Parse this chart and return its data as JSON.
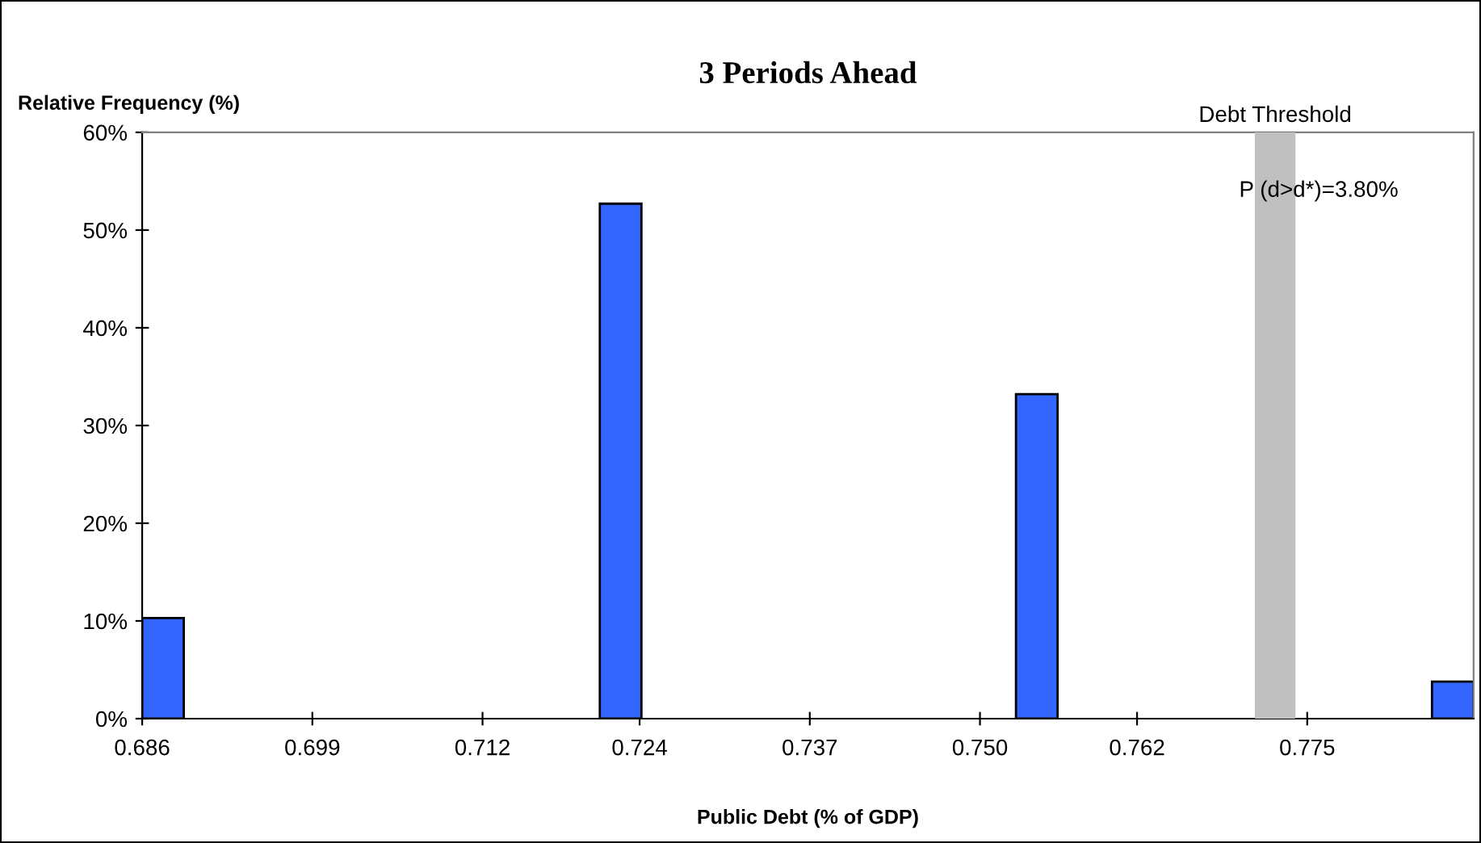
{
  "chart_data": {
    "type": "bar",
    "title": "3 Periods Ahead",
    "xlabel": "Public Debt (% of GDP)",
    "ylabel": "Relative Frequency (%)",
    "x": [
      0.68759,
      0.72255,
      0.75434,
      0.78612
    ],
    "values": [
      10.3,
      52.7,
      33.2,
      3.8
    ],
    "color": "#3366ff",
    "xlim": [
      0.686,
      0.78771
    ],
    "xticks": [
      0.686,
      0.699,
      0.712,
      0.724,
      0.737,
      {
        "value": 0.75,
        "label": "0.750"
      },
      0.762,
      0.775
    ],
    "ylim": [
      0,
      60
    ],
    "yticks": [
      {
        "value": 0,
        "label": "0%"
      },
      {
        "value": 10,
        "label": "10%"
      },
      {
        "value": 20,
        "label": "20%"
      },
      {
        "value": 30,
        "label": "30%"
      },
      {
        "value": 40,
        "label": "40%"
      },
      {
        "value": 50,
        "label": "50%"
      },
      {
        "value": 60,
        "label": "60%"
      }
    ],
    "bands": [
      {
        "axis": "x",
        "from": 0.771,
        "to": 0.7741,
        "label": "Debt Threshold",
        "color": "#c0c0c0"
      }
    ],
    "annotations": [
      "P (d>d*)=3.80%"
    ],
    "grid": false,
    "legend": false
  }
}
